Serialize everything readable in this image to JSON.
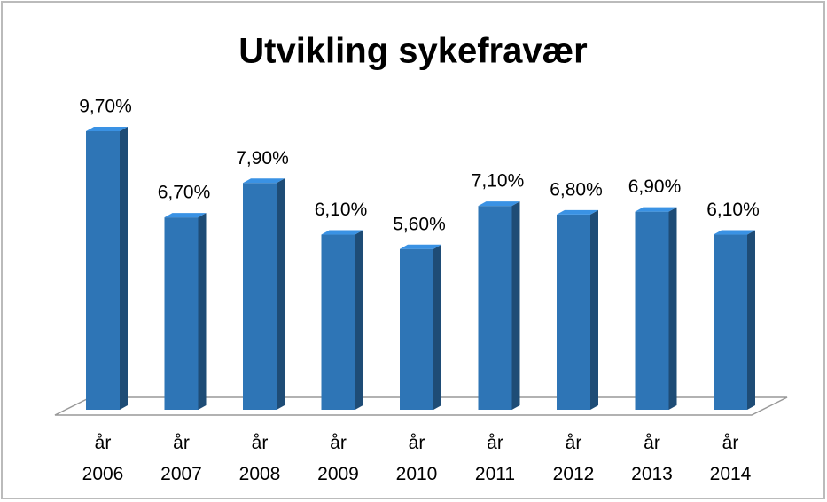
{
  "chart_data": {
    "type": "bar",
    "title": "Utvikling sykefravær",
    "categories": [
      "år 2006",
      "år 2007",
      "år 2008",
      "år 2009",
      "år 2010",
      "år 2011",
      "år 2012",
      "år 2013",
      "år 2014"
    ],
    "values": [
      9.7,
      6.7,
      7.9,
      6.1,
      5.6,
      7.1,
      6.8,
      6.9,
      6.1
    ],
    "value_labels": [
      "9,70%",
      "6,70%",
      "7,90%",
      "6,10%",
      "5,60%",
      "7,10%",
      "6,80%",
      "6,90%",
      "6,10%"
    ],
    "color": "#2e75b6"
  }
}
